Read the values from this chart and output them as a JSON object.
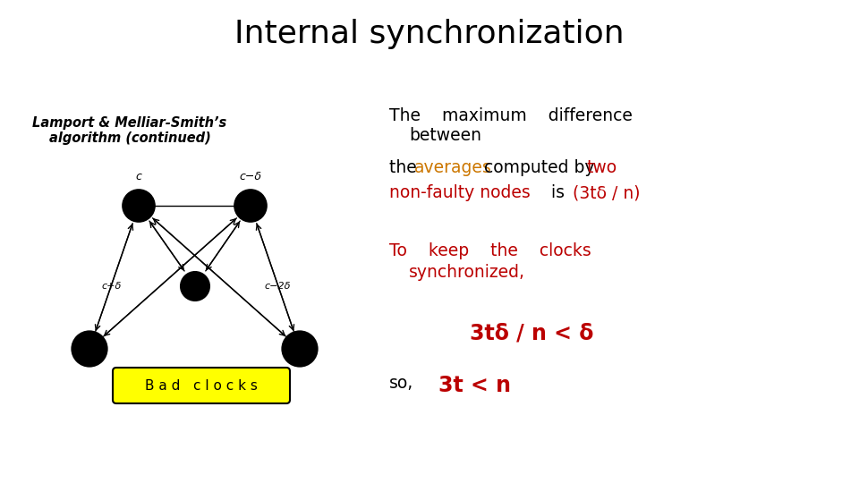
{
  "title": "Internal synchronization",
  "title_fontsize": 26,
  "subtitle": "Lamport & Melliar-Smith’s\nalgorithm (continued)",
  "subtitle_fontsize": 10.5,
  "bg_color": "#ffffff",
  "text_color": "#000000",
  "red_color": "#bb0000",
  "orange_color": "#cc7700",
  "yellow_box_color": "#ffff00",
  "bad_clocks_label": "B a d   c l o c k s",
  "node_white": "#ffffff",
  "node_grey": "#aaaaaa",
  "node_stroke": "#000000",
  "fs_main": 13.5,
  "fs_large": 17,
  "fs_small": 9,
  "fs_diagram": 8
}
